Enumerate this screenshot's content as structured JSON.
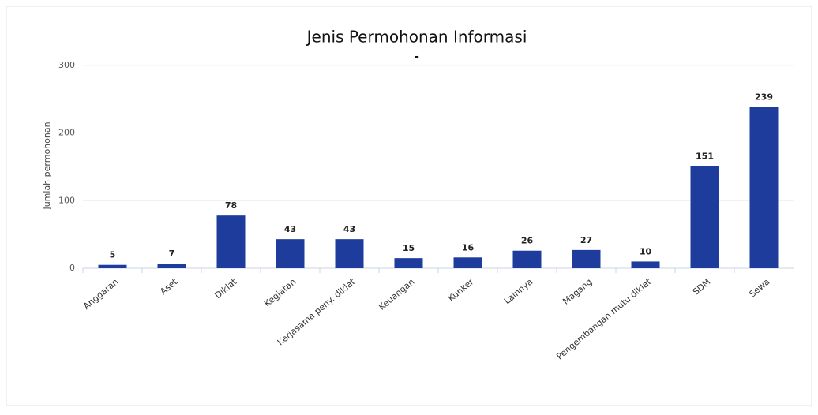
{
  "chart_data": {
    "type": "bar",
    "title": "Jenis Permohonan Informasi",
    "subtitle": "-",
    "y_label": "Jumlah permohonan",
    "categories": [
      "Anggaran",
      "Aset",
      "Diklat",
      "Kegiatan",
      "Kerjasama peny. diklat",
      "Keuangan",
      "Kunker",
      "Lainnya",
      "Magang",
      "Pengembangan mutu diklat",
      "SDM",
      "Sewa"
    ],
    "values": [
      5,
      7,
      78,
      43,
      43,
      15,
      16,
      26,
      27,
      10,
      151,
      239
    ],
    "color": "#1e3c9c",
    "ylim": [
      0,
      300
    ],
    "yticks": [
      0,
      100,
      200,
      300
    ],
    "grid": true
  }
}
